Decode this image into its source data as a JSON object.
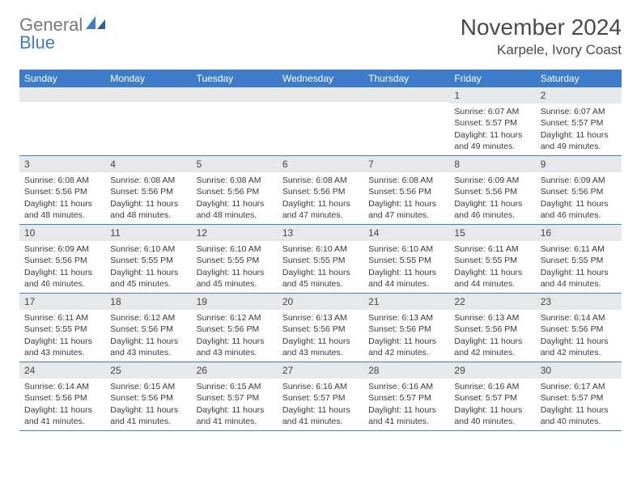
{
  "logo": {
    "word1": "General",
    "word2": "Blue"
  },
  "colors": {
    "header_bar": "#3d7cc9",
    "daynum_bg": "#e6e8ea",
    "row_border": "#3d7cc9",
    "text": "#3a3a3a",
    "logo_gray": "#7a7a7a",
    "logo_blue": "#3d7cc9"
  },
  "title": "November 2024",
  "location": "Karpele, Ivory Coast",
  "day_names": [
    "Sunday",
    "Monday",
    "Tuesday",
    "Wednesday",
    "Thursday",
    "Friday",
    "Saturday"
  ],
  "weeks": [
    [
      {
        "num": "",
        "lines": []
      },
      {
        "num": "",
        "lines": []
      },
      {
        "num": "",
        "lines": []
      },
      {
        "num": "",
        "lines": []
      },
      {
        "num": "",
        "lines": []
      },
      {
        "num": "1",
        "lines": [
          "Sunrise: 6:07 AM",
          "Sunset: 5:57 PM",
          "Daylight: 11 hours and 49 minutes."
        ]
      },
      {
        "num": "2",
        "lines": [
          "Sunrise: 6:07 AM",
          "Sunset: 5:57 PM",
          "Daylight: 11 hours and 49 minutes."
        ]
      }
    ],
    [
      {
        "num": "3",
        "lines": [
          "Sunrise: 6:08 AM",
          "Sunset: 5:56 PM",
          "Daylight: 11 hours and 48 minutes."
        ]
      },
      {
        "num": "4",
        "lines": [
          "Sunrise: 6:08 AM",
          "Sunset: 5:56 PM",
          "Daylight: 11 hours and 48 minutes."
        ]
      },
      {
        "num": "5",
        "lines": [
          "Sunrise: 6:08 AM",
          "Sunset: 5:56 PM",
          "Daylight: 11 hours and 48 minutes."
        ]
      },
      {
        "num": "6",
        "lines": [
          "Sunrise: 6:08 AM",
          "Sunset: 5:56 PM",
          "Daylight: 11 hours and 47 minutes."
        ]
      },
      {
        "num": "7",
        "lines": [
          "Sunrise: 6:08 AM",
          "Sunset: 5:56 PM",
          "Daylight: 11 hours and 47 minutes."
        ]
      },
      {
        "num": "8",
        "lines": [
          "Sunrise: 6:09 AM",
          "Sunset: 5:56 PM",
          "Daylight: 11 hours and 46 minutes."
        ]
      },
      {
        "num": "9",
        "lines": [
          "Sunrise: 6:09 AM",
          "Sunset: 5:56 PM",
          "Daylight: 11 hours and 46 minutes."
        ]
      }
    ],
    [
      {
        "num": "10",
        "lines": [
          "Sunrise: 6:09 AM",
          "Sunset: 5:56 PM",
          "Daylight: 11 hours and 46 minutes."
        ]
      },
      {
        "num": "11",
        "lines": [
          "Sunrise: 6:10 AM",
          "Sunset: 5:55 PM",
          "Daylight: 11 hours and 45 minutes."
        ]
      },
      {
        "num": "12",
        "lines": [
          "Sunrise: 6:10 AM",
          "Sunset: 5:55 PM",
          "Daylight: 11 hours and 45 minutes."
        ]
      },
      {
        "num": "13",
        "lines": [
          "Sunrise: 6:10 AM",
          "Sunset: 5:55 PM",
          "Daylight: 11 hours and 45 minutes."
        ]
      },
      {
        "num": "14",
        "lines": [
          "Sunrise: 6:10 AM",
          "Sunset: 5:55 PM",
          "Daylight: 11 hours and 44 minutes."
        ]
      },
      {
        "num": "15",
        "lines": [
          "Sunrise: 6:11 AM",
          "Sunset: 5:55 PM",
          "Daylight: 11 hours and 44 minutes."
        ]
      },
      {
        "num": "16",
        "lines": [
          "Sunrise: 6:11 AM",
          "Sunset: 5:55 PM",
          "Daylight: 11 hours and 44 minutes."
        ]
      }
    ],
    [
      {
        "num": "17",
        "lines": [
          "Sunrise: 6:11 AM",
          "Sunset: 5:55 PM",
          "Daylight: 11 hours and 43 minutes."
        ]
      },
      {
        "num": "18",
        "lines": [
          "Sunrise: 6:12 AM",
          "Sunset: 5:56 PM",
          "Daylight: 11 hours and 43 minutes."
        ]
      },
      {
        "num": "19",
        "lines": [
          "Sunrise: 6:12 AM",
          "Sunset: 5:56 PM",
          "Daylight: 11 hours and 43 minutes."
        ]
      },
      {
        "num": "20",
        "lines": [
          "Sunrise: 6:13 AM",
          "Sunset: 5:56 PM",
          "Daylight: 11 hours and 43 minutes."
        ]
      },
      {
        "num": "21",
        "lines": [
          "Sunrise: 6:13 AM",
          "Sunset: 5:56 PM",
          "Daylight: 11 hours and 42 minutes."
        ]
      },
      {
        "num": "22",
        "lines": [
          "Sunrise: 6:13 AM",
          "Sunset: 5:56 PM",
          "Daylight: 11 hours and 42 minutes."
        ]
      },
      {
        "num": "23",
        "lines": [
          "Sunrise: 6:14 AM",
          "Sunset: 5:56 PM",
          "Daylight: 11 hours and 42 minutes."
        ]
      }
    ],
    [
      {
        "num": "24",
        "lines": [
          "Sunrise: 6:14 AM",
          "Sunset: 5:56 PM",
          "Daylight: 11 hours and 41 minutes."
        ]
      },
      {
        "num": "25",
        "lines": [
          "Sunrise: 6:15 AM",
          "Sunset: 5:56 PM",
          "Daylight: 11 hours and 41 minutes."
        ]
      },
      {
        "num": "26",
        "lines": [
          "Sunrise: 6:15 AM",
          "Sunset: 5:57 PM",
          "Daylight: 11 hours and 41 minutes."
        ]
      },
      {
        "num": "27",
        "lines": [
          "Sunrise: 6:16 AM",
          "Sunset: 5:57 PM",
          "Daylight: 11 hours and 41 minutes."
        ]
      },
      {
        "num": "28",
        "lines": [
          "Sunrise: 6:16 AM",
          "Sunset: 5:57 PM",
          "Daylight: 11 hours and 41 minutes."
        ]
      },
      {
        "num": "29",
        "lines": [
          "Sunrise: 6:16 AM",
          "Sunset: 5:57 PM",
          "Daylight: 11 hours and 40 minutes."
        ]
      },
      {
        "num": "30",
        "lines": [
          "Sunrise: 6:17 AM",
          "Sunset: 5:57 PM",
          "Daylight: 11 hours and 40 minutes."
        ]
      }
    ]
  ]
}
